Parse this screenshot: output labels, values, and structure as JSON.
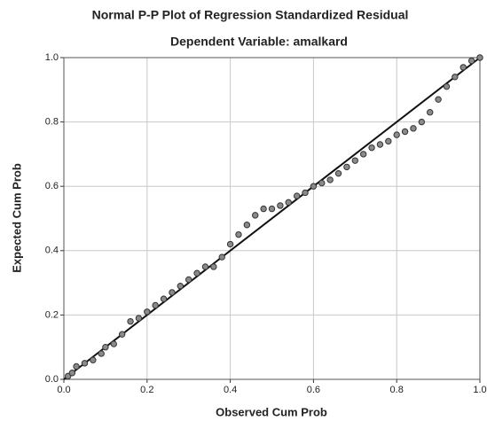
{
  "chart_data": {
    "type": "scatter",
    "title": "Normal P-P Plot of Regression Standardized Residual",
    "subtitle": "Dependent Variable: amalkard",
    "x_label": "Observed Cum Prob",
    "y_label": "Expected Cum Prob",
    "x": [
      0.01,
      0.02,
      0.03,
      0.05,
      0.07,
      0.09,
      0.1,
      0.12,
      0.14,
      0.16,
      0.18,
      0.2,
      0.22,
      0.24,
      0.26,
      0.28,
      0.3,
      0.32,
      0.34,
      0.36,
      0.38,
      0.4,
      0.42,
      0.44,
      0.46,
      0.48,
      0.5,
      0.52,
      0.54,
      0.56,
      0.58,
      0.6,
      0.62,
      0.64,
      0.66,
      0.68,
      0.7,
      0.72,
      0.74,
      0.76,
      0.78,
      0.8,
      0.82,
      0.84,
      0.86,
      0.88,
      0.9,
      0.92,
      0.94,
      0.96,
      0.98,
      1.0
    ],
    "values": [
      0.01,
      0.02,
      0.04,
      0.05,
      0.06,
      0.08,
      0.1,
      0.11,
      0.14,
      0.18,
      0.19,
      0.21,
      0.23,
      0.25,
      0.27,
      0.29,
      0.31,
      0.33,
      0.35,
      0.35,
      0.38,
      0.42,
      0.45,
      0.48,
      0.51,
      0.53,
      0.53,
      0.54,
      0.55,
      0.57,
      0.58,
      0.6,
      0.61,
      0.62,
      0.64,
      0.66,
      0.68,
      0.7,
      0.72,
      0.73,
      0.74,
      0.76,
      0.77,
      0.78,
      0.8,
      0.83,
      0.87,
      0.91,
      0.94,
      0.97,
      0.99,
      1.0
    ],
    "color": "#8a8a8a",
    "xlim": [
      0,
      1
    ],
    "ylim": [
      0,
      1
    ],
    "xticks": [
      {
        "value": 0,
        "label": "0.0"
      },
      0.2,
      0.4,
      0.6,
      0.8,
      {
        "value": 1,
        "label": "1.0"
      }
    ],
    "yticks": [
      {
        "value": 0,
        "label": "0.0"
      },
      0.2,
      0.4,
      0.6,
      0.8,
      {
        "value": 1,
        "label": "1.0"
      }
    ],
    "grid": true
  }
}
